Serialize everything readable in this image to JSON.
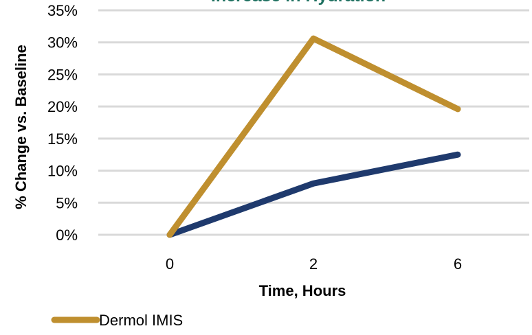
{
  "chart_data": {
    "type": "line",
    "title": "Increase in Hydration",
    "xlabel": "Time, Hours",
    "ylabel": "% Change vs. Baseline",
    "x": [
      "0",
      "2",
      "6"
    ],
    "yticks": [
      "0%",
      "5%",
      "10%",
      "15%",
      "20%",
      "25%",
      "30%",
      "35%"
    ],
    "ylim": [
      0,
      35
    ],
    "grid": true,
    "legend_position": "bottom-left",
    "series": [
      {
        "name": "Dermol IMIS",
        "color": "#bf8f2f",
        "values": [
          0,
          30.6,
          19.6
        ]
      },
      {
        "name": "",
        "color": "#1f3a6d",
        "values": [
          0,
          8.0,
          12.5
        ]
      }
    ]
  },
  "colors": {
    "title": "#1e7060",
    "gridline": "#d9d9d9",
    "text": "#000000"
  }
}
